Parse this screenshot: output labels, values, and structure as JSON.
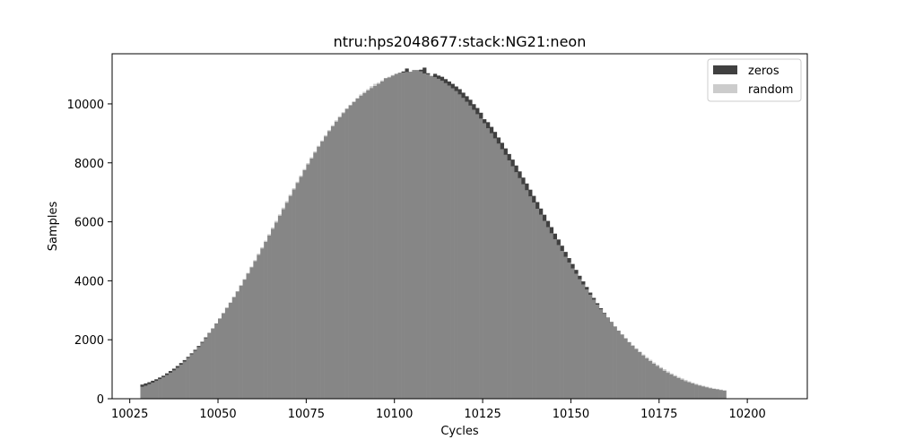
{
  "chart_data": {
    "type": "bar",
    "title": "ntru:hps2048677:stack:NG21:neon",
    "xlabel": "Cycles",
    "ylabel": "Samples",
    "xlim": [
      10020,
      10217
    ],
    "ylim": [
      0,
      11700
    ],
    "grid": false,
    "legend_position": "top-right",
    "x_ticks": [
      10025,
      10050,
      10075,
      10100,
      10125,
      10150,
      10175,
      10200
    ],
    "y_ticks": [
      0,
      2000,
      4000,
      6000,
      8000,
      10000
    ],
    "x_start": 10028,
    "x_step": 1,
    "series": [
      {
        "name": "zeros",
        "color": "#404040",
        "values": [
          480,
          520,
          560,
          610,
          660,
          720,
          780,
          860,
          940,
          1020,
          1110,
          1210,
          1310,
          1420,
          1540,
          1660,
          1790,
          1930,
          2080,
          2230,
          2380,
          2550,
          2720,
          2900,
          3080,
          3260,
          3450,
          3640,
          3840,
          4040,
          4250,
          4460,
          4670,
          4880,
          5100,
          5320,
          5540,
          5760,
          5980,
          6210,
          6430,
          6650,
          6880,
          7100,
          7320,
          7530,
          7750,
          7950,
          8150,
          8350,
          8550,
          8730,
          8900,
          9080,
          9240,
          9400,
          9550,
          9690,
          9830,
          9950,
          10070,
          10180,
          10280,
          10370,
          10460,
          10540,
          10610,
          10680,
          10760,
          10870,
          10900,
          10960,
          11020,
          11060,
          11100,
          11200,
          11080,
          11140,
          11140,
          11160,
          11230,
          11040,
          10950,
          11020,
          10960,
          10920,
          10840,
          10760,
          10680,
          10590,
          10500,
          10380,
          10260,
          10140,
          9990,
          9860,
          9700,
          9480,
          9380,
          9220,
          9050,
          8860,
          8680,
          8490,
          8300,
          8110,
          7910,
          7710,
          7500,
          7300,
          7090,
          6880,
          6670,
          6450,
          6240,
          6030,
          5820,
          5600,
          5400,
          5190,
          4980,
          4770,
          4570,
          4370,
          4170,
          3980,
          3790,
          3600,
          3420,
          3240,
          3070,
          2910,
          2750,
          2600,
          2450,
          2310,
          2180,
          2050,
          1920,
          1800,
          1690,
          1580,
          1470,
          1370,
          1280,
          1190,
          1110,
          1030,
          950,
          880,
          820,
          760,
          700,
          650,
          600,
          560,
          520,
          480,
          450,
          420,
          390,
          360,
          340,
          320,
          300,
          280
        ]
      },
      {
        "name": "random",
        "color": "#cccccc",
        "values": [
          400,
          440,
          490,
          540,
          600,
          660,
          730,
          800,
          880,
          960,
          1050,
          1150,
          1260,
          1380,
          1500,
          1620,
          1750,
          1900,
          2050,
          2210,
          2370,
          2540,
          2710,
          2890,
          3070,
          3260,
          3450,
          3650,
          3850,
          4060,
          4270,
          4480,
          4700,
          4920,
          5140,
          5360,
          5580,
          5810,
          6030,
          6250,
          6480,
          6700,
          6920,
          7140,
          7360,
          7570,
          7790,
          7990,
          8190,
          8390,
          8580,
          8760,
          8940,
          9110,
          9280,
          9440,
          9580,
          9720,
          9850,
          9970,
          10080,
          10200,
          10320,
          10410,
          10500,
          10600,
          10680,
          10720,
          10800,
          10860,
          10920,
          10980,
          11020,
          11060,
          11060,
          11080,
          11060,
          11120,
          11120,
          11100,
          11030,
          11000,
          10960,
          10910,
          10850,
          10780,
          10700,
          10620,
          10530,
          10430,
          10320,
          10200,
          10070,
          9940,
          9800,
          9650,
          9500,
          9340,
          9170,
          9000,
          8830,
          8650,
          8460,
          8270,
          8080,
          7880,
          7680,
          7480,
          7270,
          7070,
          6860,
          6650,
          6440,
          6240,
          6030,
          5820,
          5610,
          5410,
          5210,
          5010,
          4810,
          4620,
          4420,
          4240,
          4050,
          3870,
          3700,
          3520,
          3360,
          3190,
          3030,
          2880,
          2730,
          2580,
          2440,
          2310,
          2180,
          2050,
          1930,
          1820,
          1710,
          1600,
          1500,
          1410,
          1320,
          1230,
          1150,
          1070,
          1000,
          930,
          860,
          800,
          740,
          690,
          640,
          590,
          550,
          510,
          470,
          440,
          410,
          380,
          350,
          330,
          310,
          290,
          270,
          250
        ]
      }
    ]
  }
}
